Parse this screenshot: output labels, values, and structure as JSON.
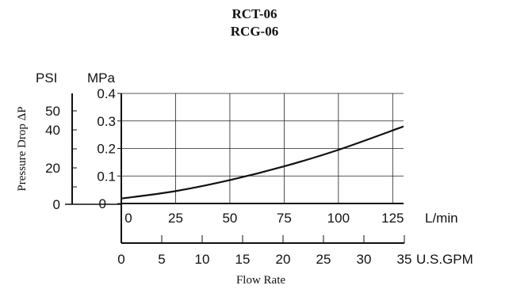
{
  "titles": [
    "RCT-06",
    "RCG-06"
  ],
  "chart_data": {
    "type": "line",
    "title": "RCT-06 RCG-06",
    "ylabel": "Pressure Drop ΔP",
    "xlabel": "Flow Rate",
    "y_axis_primary": {
      "unit": "MPa",
      "ticks": [
        "0",
        "0.1",
        "0.2",
        "0.3",
        "0.4"
      ],
      "ylim": [
        0,
        0.4
      ]
    },
    "y_axis_secondary": {
      "unit": "PSI",
      "ticks": [
        "0",
        "20",
        "40",
        "50"
      ]
    },
    "x_axis_primary": {
      "unit": "L/min",
      "ticks": [
        "0",
        "25",
        "50",
        "75",
        "100",
        "125"
      ],
      "xlim": [
        0,
        130
      ]
    },
    "x_axis_secondary": {
      "unit": "U.S.GPM",
      "ticks": [
        "0",
        "5",
        "10",
        "15",
        "20",
        "25",
        "30",
        "35"
      ]
    },
    "grid": true,
    "series": [
      {
        "x": [
          0,
          25,
          50,
          75,
          100,
          130
        ],
        "y": [
          0.018,
          0.045,
          0.085,
          0.135,
          0.195,
          0.28
        ],
        "color": "#111111"
      }
    ]
  }
}
